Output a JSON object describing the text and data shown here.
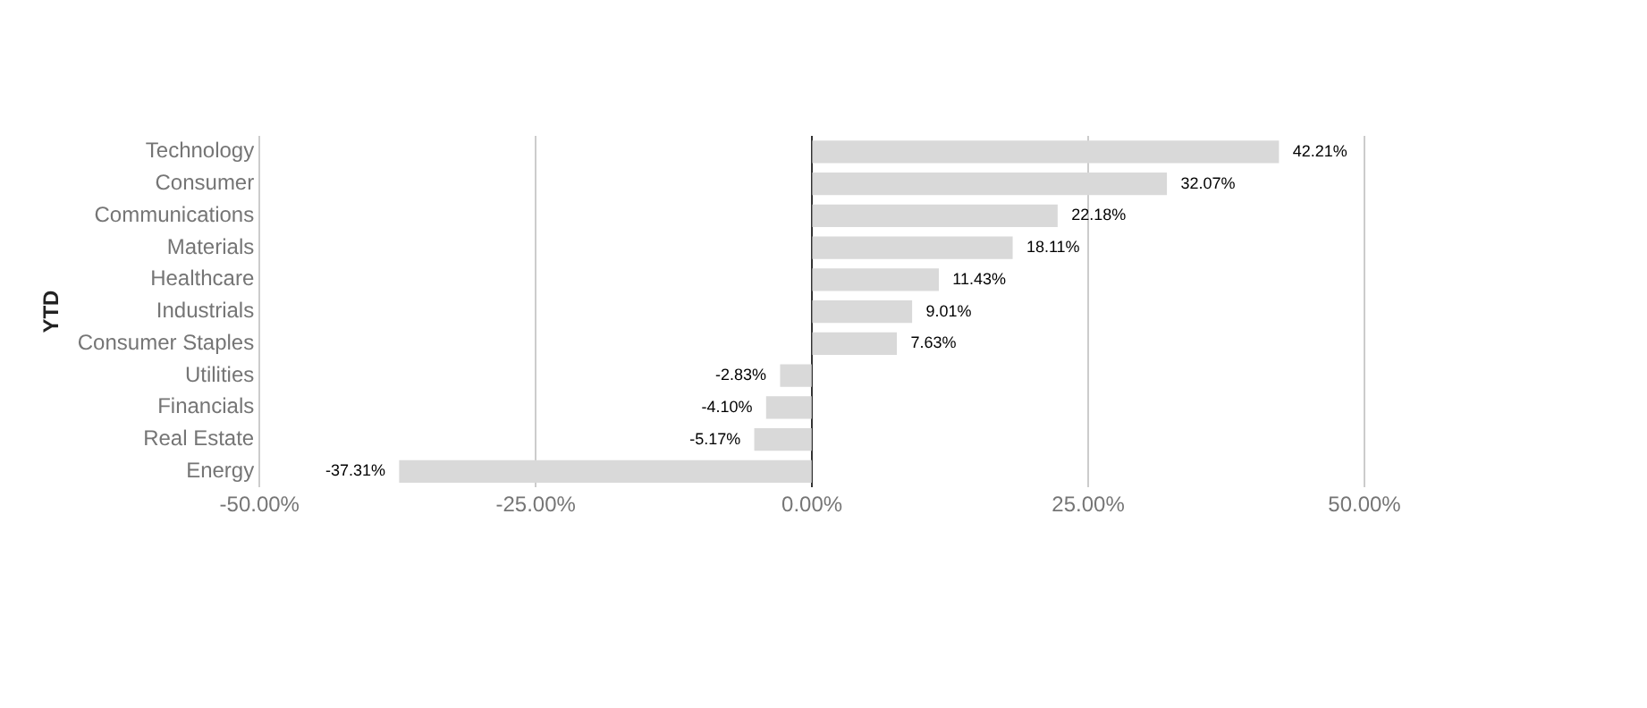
{
  "chart_data": {
    "type": "bar",
    "orientation": "horizontal",
    "ylabel": "YTD",
    "categories": [
      "Technology",
      "Consumer",
      "Communications",
      "Materials",
      "Healthcare",
      "Industrials",
      "Consumer Staples",
      "Utilities",
      "Financials",
      "Real Estate",
      "Energy"
    ],
    "values": [
      42.21,
      32.07,
      22.18,
      18.11,
      11.43,
      9.01,
      7.63,
      -2.83,
      -4.1,
      -5.17,
      -37.31
    ],
    "value_labels": [
      "42.21%",
      "32.07%",
      "22.18%",
      "18.11%",
      "11.43%",
      "9.01%",
      "7.63%",
      "-2.83%",
      "-4.10%",
      "-5.17%",
      "-37.31%"
    ],
    "color": "#d9d9d9",
    "xlim": [
      -50,
      50
    ],
    "xticks": [
      {
        "value": -50,
        "label": "-50.00%"
      },
      {
        "value": -25,
        "label": "-25.00%"
      },
      {
        "value": 0,
        "label": "0.00%"
      },
      {
        "value": 25,
        "label": "25.00%"
      },
      {
        "value": 50,
        "label": "50.00%"
      }
    ],
    "grid": "x",
    "legend": false
  }
}
